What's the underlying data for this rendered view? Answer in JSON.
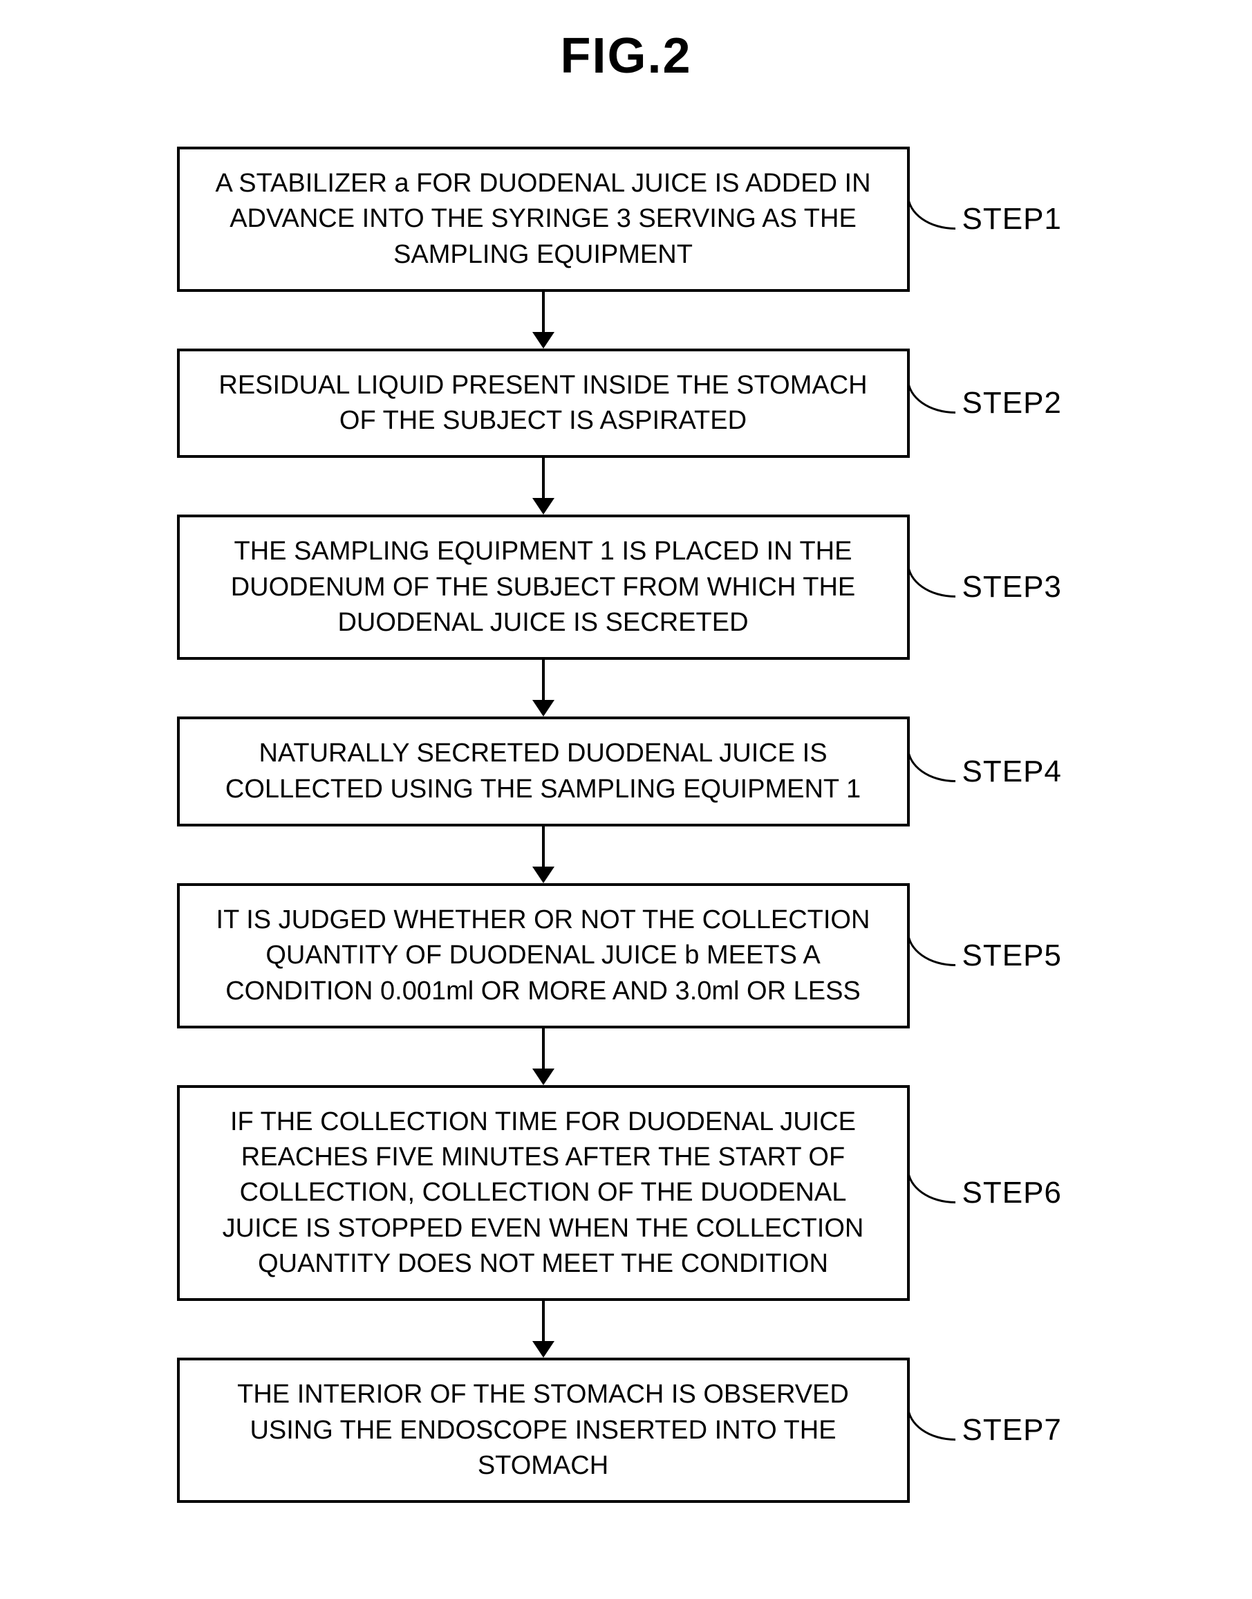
{
  "figure": {
    "title": "FIG.2",
    "box_border_color": "#000000",
    "box_border_width": 4,
    "font_color": "#000000",
    "background_color": "#ffffff",
    "box_font_size": 38,
    "label_font_size": 44,
    "title_font_size": 72,
    "arrow_line_width": 4,
    "arrow_line_height": 60,
    "arrow_head_width": 32,
    "arrow_head_height": 24,
    "steps": [
      {
        "label": "STEP1",
        "text": "A STABILIZER a FOR DUODENAL JUICE IS ADDED IN ADVANCE INTO THE SYRINGE 3 SERVING AS THE SAMPLING EQUIPMENT"
      },
      {
        "label": "STEP2",
        "text": "RESIDUAL LIQUID PRESENT INSIDE THE STOMACH OF THE SUBJECT IS ASPIRATED"
      },
      {
        "label": "STEP3",
        "text": "THE SAMPLING EQUIPMENT 1 IS PLACED IN THE DUODENUM OF THE SUBJECT FROM WHICH THE DUODENAL JUICE IS SECRETED"
      },
      {
        "label": "STEP4",
        "text": "NATURALLY SECRETED DUODENAL JUICE IS COLLECTED USING THE SAMPLING EQUIPMENT 1"
      },
      {
        "label": "STEP5",
        "text": "IT IS JUDGED WHETHER OR NOT THE COLLECTION QUANTITY OF DUODENAL JUICE b MEETS A CONDITION 0.001ml OR MORE AND 3.0ml OR LESS"
      },
      {
        "label": "STEP6",
        "text": "IF THE COLLECTION TIME FOR DUODENAL JUICE REACHES FIVE MINUTES AFTER THE START OF COLLECTION, COLLECTION OF THE DUODENAL JUICE IS STOPPED EVEN WHEN THE COLLECTION QUANTITY DOES NOT MEET THE CONDITION"
      },
      {
        "label": "STEP7",
        "text": "THE INTERIOR OF THE STOMACH IS OBSERVED USING THE ENDOSCOPE INSERTED INTO THE STOMACH"
      }
    ]
  }
}
